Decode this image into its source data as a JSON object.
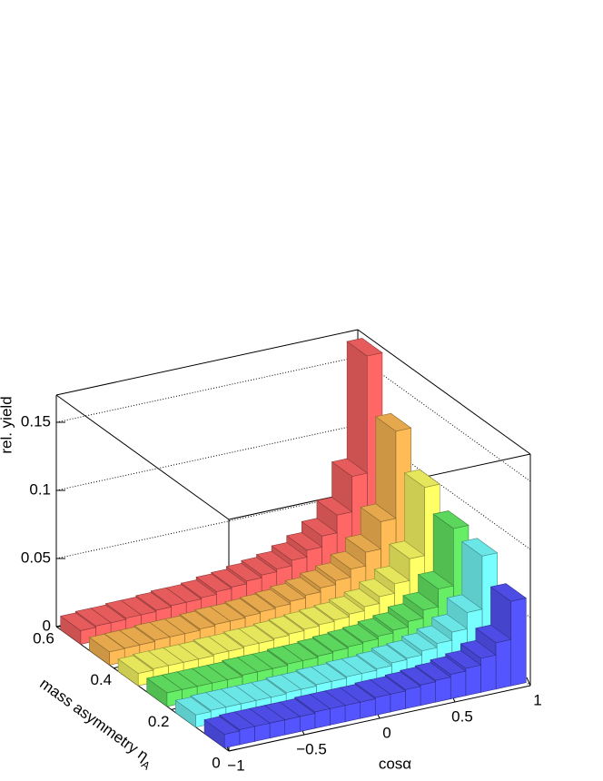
{
  "chart_data": {
    "type": "lego",
    "xlabel": "cosα",
    "ylabel": "mass asymmetry η",
    "ylabel_sub": "A",
    "zlabel": "rel. yield",
    "xlim": [
      -1,
      1
    ],
    "ylim": [
      0,
      0.6
    ],
    "zlim": [
      0,
      0.17
    ],
    "xticks": [
      {
        "value": -1,
        "label": "−1"
      },
      {
        "value": -0.5,
        "label": "−0.5"
      },
      0,
      0.5,
      1
    ],
    "yticks": [
      0,
      0.2,
      0.4,
      0.6
    ],
    "zticks": [
      0,
      0.05,
      0.1,
      0.15
    ],
    "grid": true,
    "xbins": [
      -1,
      -0.9,
      -0.8,
      -0.7,
      -0.6,
      -0.5,
      -0.4,
      -0.3,
      -0.2,
      -0.1,
      0,
      0.1,
      0.2,
      0.3,
      0.4,
      0.5,
      0.6,
      0.7,
      0.8,
      0.9,
      1
    ],
    "ybins": [
      0,
      0.1,
      0.2,
      0.3,
      0.4,
      0.5,
      0.6
    ],
    "series": [
      {
        "color": "#5555ff",
        "values": [
          0.01,
          0.011,
          0.011,
          0.011,
          0.011,
          0.011,
          0.012,
          0.012,
          0.012,
          0.012,
          0.013,
          0.013,
          0.014,
          0.015,
          0.016,
          0.018,
          0.02,
          0.025,
          0.034,
          0.062
        ]
      },
      {
        "color": "#77ffff",
        "values": [
          0.009,
          0.01,
          0.01,
          0.01,
          0.01,
          0.01,
          0.011,
          0.011,
          0.012,
          0.012,
          0.013,
          0.013,
          0.014,
          0.016,
          0.017,
          0.02,
          0.023,
          0.029,
          0.041,
          0.08
        ]
      },
      {
        "color": "#66ee66",
        "values": [
          0.01,
          0.01,
          0.01,
          0.01,
          0.01,
          0.011,
          0.011,
          0.011,
          0.012,
          0.012,
          0.013,
          0.014,
          0.015,
          0.016,
          0.018,
          0.02,
          0.024,
          0.03,
          0.043,
          0.085
        ]
      },
      {
        "color": "#ffff66",
        "values": [
          0.009,
          0.01,
          0.01,
          0.01,
          0.01,
          0.011,
          0.011,
          0.012,
          0.012,
          0.013,
          0.014,
          0.015,
          0.016,
          0.017,
          0.019,
          0.022,
          0.027,
          0.034,
          0.05,
          0.1
        ]
      },
      {
        "color": "#ffbb55",
        "values": [
          0.0096,
          0.0099,
          0.01,
          0.011,
          0.011,
          0.011,
          0.012,
          0.013,
          0.013,
          0.014,
          0.015,
          0.016,
          0.018,
          0.02,
          0.023,
          0.026,
          0.032,
          0.042,
          0.062,
          0.126
        ]
      },
      {
        "color": "#ff6666",
        "values": [
          0.01,
          0.011,
          0.011,
          0.012,
          0.012,
          0.013,
          0.014,
          0.014,
          0.015,
          0.017,
          0.018,
          0.02,
          0.022,
          0.024,
          0.028,
          0.033,
          0.041,
          0.054,
          0.08,
          0.166
        ]
      }
    ]
  }
}
